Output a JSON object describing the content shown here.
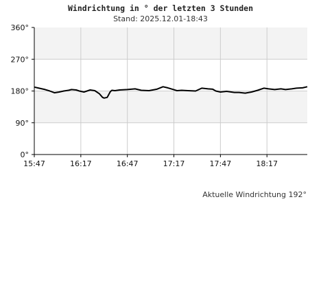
{
  "header": {
    "title": "Windrichtung in ° der letzten 3 Stunden",
    "subtitle": "Stand: 2025.12.01-18:43"
  },
  "footer": {
    "current_label": "Aktuelle Windrichtung 192°"
  },
  "colors": {
    "line": "#000000",
    "band": "#f3f3f3",
    "grid": "#cccccc",
    "axis": "#000000"
  },
  "chart_data": {
    "type": "line",
    "title": "Windrichtung in ° der letzten 3 Stunden",
    "subtitle": "Stand: 2025.12.01-18:43",
    "xlabel": "",
    "ylabel": "",
    "xlim": [
      "15:47",
      "18:43"
    ],
    "ylim": [
      0,
      360
    ],
    "grid": true,
    "y_ticks": [
      "0°",
      "90°",
      "180°",
      "270°",
      "360°"
    ],
    "x_ticks": [
      "15:47",
      "16:17",
      "16:47",
      "17:17",
      "17:47",
      "18:17"
    ],
    "series": [
      {
        "x": [
          "15:47",
          "15:50",
          "15:54",
          "15:57",
          "16:00",
          "16:03",
          "16:06",
          "16:09",
          "16:11",
          "16:14",
          "16:16",
          "16:19",
          "16:21",
          "16:23",
          "16:26",
          "16:29",
          "16:31",
          "16:32",
          "16:34",
          "16:36",
          "16:37",
          "16:39",
          "16:42",
          "16:47",
          "16:52",
          "16:56",
          "17:01",
          "17:06",
          "17:10",
          "17:13",
          "17:16",
          "17:19",
          "17:22",
          "17:26",
          "17:31",
          "17:35",
          "17:39",
          "17:42",
          "17:44",
          "17:47",
          "17:51",
          "17:56",
          "17:59",
          "18:03",
          "18:07",
          "18:11",
          "18:15",
          "18:18",
          "18:22",
          "18:26",
          "18:29",
          "18:33",
          "18:36",
          "18:40",
          "18:43"
        ],
        "values": [
          191,
          188,
          184,
          180,
          175,
          177,
          180,
          182,
          184,
          183,
          180,
          177,
          180,
          183,
          181,
          172,
          162,
          160,
          162,
          178,
          182,
          181,
          183,
          184,
          186,
          182,
          181,
          185,
          192,
          189,
          185,
          181,
          182,
          181,
          180,
          188,
          186,
          185,
          180,
          177,
          179,
          176,
          176,
          174,
          177,
          182,
          188,
          186,
          184,
          186,
          184,
          186,
          188,
          189,
          192
        ]
      }
    ]
  }
}
